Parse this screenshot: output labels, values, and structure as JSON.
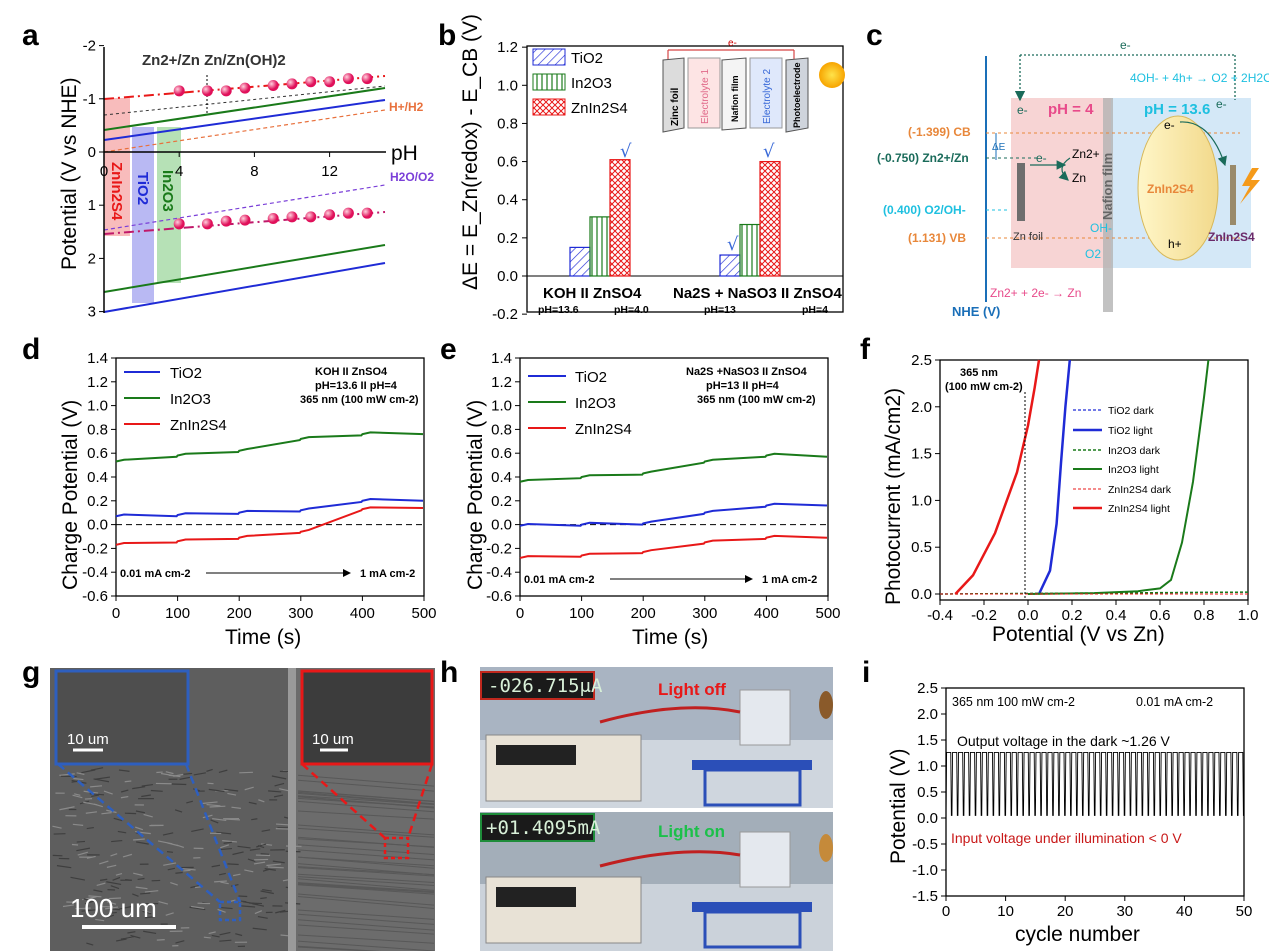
{
  "panels": {
    "a": "a",
    "b": "b",
    "c": "c",
    "d": "d",
    "e": "e",
    "f": "f",
    "g": "g",
    "h": "h",
    "i": "i"
  },
  "colors": {
    "tio2": "#1f2bd6",
    "in2o3": "#1a7a1a",
    "znin2s4": "#e81818",
    "red_band": "#f6a5a5",
    "blue_band": "#a8a8f0",
    "green_band": "#a4d9a4",
    "h2o_o2": "#7a3fd8",
    "h2": "#e8713d",
    "pink": "#e91e63"
  },
  "panel_a": {
    "ylabel": "Potential (V vs NHE)",
    "xlabel": "pH",
    "yticks": [
      "-2",
      "-1",
      "0",
      "1",
      "2",
      "3"
    ],
    "xticks": [
      "0",
      "4",
      "8",
      "12"
    ],
    "title": "Zn2+/Zn  Zn/Zn(OH)2",
    "label_h2": "H+/H2",
    "label_o2": "H2O/O2",
    "band_labels": [
      "ZnIn2S4",
      "TiO2",
      "In2O3"
    ],
    "upper_points": [
      [
        4,
        -1.15
      ],
      [
        5.5,
        -1.15
      ],
      [
        6.5,
        -1.15
      ],
      [
        7.5,
        -1.2
      ],
      [
        9,
        -1.25
      ],
      [
        10,
        -1.28
      ],
      [
        11,
        -1.32
      ],
      [
        12,
        -1.32
      ],
      [
        13,
        -1.38
      ],
      [
        14,
        -1.38
      ]
    ],
    "lower_points": [
      [
        4,
        1.35
      ],
      [
        5.5,
        1.35
      ],
      [
        6.5,
        1.3
      ],
      [
        7.5,
        1.28
      ],
      [
        9,
        1.25
      ],
      [
        10,
        1.22
      ],
      [
        11,
        1.22
      ],
      [
        12,
        1.18
      ],
      [
        13,
        1.15
      ],
      [
        14,
        1.15
      ]
    ]
  },
  "panel_b": {
    "ylabel": "ΔE = E_Zn(redox) - E_CB (V)",
    "yticks": [
      "-0.2",
      "0.0",
      "0.2",
      "0.4",
      "0.6",
      "0.8",
      "1.0",
      "1.2"
    ],
    "legend": [
      "TiO2",
      "In2O3",
      "ZnIn2S4"
    ],
    "cat1": {
      "top": "KOH    II    ZnSO4",
      "bottom_left": "pH=13.6",
      "bottom_right": "pH=4.0"
    },
    "cat2": {
      "top": "Na2S + NaSO3  II  ZnSO4",
      "bottom_left": "pH=13",
      "bottom_right": "pH=4"
    },
    "check": "√",
    "cell_labels": [
      "Zinc foil",
      "Electrolyte 1",
      "Nafion film",
      "Electrolyte 2",
      "Photoelectrode"
    ],
    "electron": "e-"
  },
  "panel_c": {
    "nhe": "NHE (V)",
    "de": "ΔE",
    "cb": "(-1.399) CB",
    "zn": "(-0.750) Zn2+/Zn",
    "o2": "(0.400) O2/OH-",
    "vb": "(1.131) VB",
    "ph4": "pH = 4",
    "ph136": "pH = 13.6",
    "zinc_foil": "Zn foil",
    "nafion": "Nafion film",
    "znin2s4": "ZnIn2S4",
    "reaction_top": "4OH- + 4h+ → O2 + 2H2O",
    "reaction_bottom": "Zn2+ + 2e- → Zn",
    "e": "e-",
    "h": "h+",
    "oh": "OH-",
    "o2s": "O2",
    "zn2": "Zn2+",
    "znm": "Zn"
  },
  "panel_d": {
    "ylabel": "Charge Potential (V)",
    "xlabel": "Time (s)",
    "yticks": [
      "-0.6",
      "-0.4",
      "-0.2",
      "0.0",
      "0.2",
      "0.4",
      "0.6",
      "0.8",
      "1.0",
      "1.2",
      "1.4"
    ],
    "xticks": [
      "0",
      "100",
      "200",
      "300",
      "400",
      "500"
    ],
    "legend": [
      "TiO2",
      "In2O3",
      "ZnIn2S4"
    ],
    "info1": "KOH     II     ZnSO4",
    "info2": "pH=13.6   II   pH=4",
    "info3": "365 nm (100 mW cm-2)",
    "arrow_left": "0.01 mA cm-2",
    "arrow_right": "1 mA cm-2"
  },
  "panel_e": {
    "ylabel": "Charge Potential (V)",
    "xlabel": "Time (s)",
    "yticks": [
      "-0.6",
      "-0.4",
      "-0.2",
      "0.0",
      "0.2",
      "0.4",
      "0.6",
      "0.8",
      "1.0",
      "1.2",
      "1.4"
    ],
    "xticks": [
      "0",
      "100",
      "200",
      "300",
      "400",
      "500"
    ],
    "legend": [
      "TiO2",
      "In2O3",
      "ZnIn2S4"
    ],
    "info1": "Na2S +NaSO3  II  ZnSO4",
    "info2": "pH=13       II   pH=4",
    "info3": "365 nm (100 mW cm-2)",
    "arrow_left": "0.01 mA cm-2",
    "arrow_right": "1 mA cm-2"
  },
  "panel_f": {
    "ylabel": "Photocurrent (mA/cm2)",
    "xlabel": "Potential (V vs Zn)",
    "yticks": [
      "0.0",
      "0.5",
      "1.0",
      "1.5",
      "2.0",
      "2.5"
    ],
    "xticks": [
      "-0.4",
      "-0.2",
      "0.0",
      "0.2",
      "0.4",
      "0.6",
      "0.8",
      "1.0"
    ],
    "legend": [
      "TiO2 dark",
      "TiO2 light",
      "In2O3 dark",
      "In2O3 light",
      "ZnIn2S4 dark",
      "ZnIn2S4 light"
    ],
    "note1": "365 nm",
    "note2": "(100 mW cm-2)"
  },
  "panel_g": {
    "scale_inset_left": "10 um",
    "scale_inset_right": "10 um",
    "scale_main": "100 um"
  },
  "panel_h": {
    "reading_off": "-026.715μA",
    "reading_on": "+01.4095mA",
    "label_off": "Light off",
    "label_on": "Light on"
  },
  "panel_i": {
    "ylabel": "Potential (V)",
    "xlabel": "cycle number",
    "yticks": [
      "-1.5",
      "-1.0",
      "-0.5",
      "0.0",
      "0.5",
      "1.0",
      "1.5",
      "2.0",
      "2.5"
    ],
    "xticks": [
      "0",
      "10",
      "20",
      "30",
      "40",
      "50"
    ],
    "info_left": "365 nm 100 mW cm-2",
    "info_right": "0.01 mA cm-2",
    "output": "Output voltage in the dark ~1.26 V",
    "input": "Input voltage under illumination < 0 V"
  },
  "chart_data": [
    {
      "type": "line",
      "title": "",
      "xlabel": "pH",
      "ylabel": "Potential (V vs NHE)",
      "xlim": [
        0,
        15
      ],
      "ylim": [
        -2,
        3
      ],
      "y_inverted": true,
      "series": [
        {
          "name": "TiO2",
          "x": [
            0,
            15
          ],
          "y": [
            -0.15,
            -1.0
          ]
        },
        {
          "name": "In2O3",
          "x": [
            0,
            15
          ],
          "y": [
            -0.3,
            -1.15
          ]
        },
        {
          "name": "H+/H2",
          "x": [
            0,
            15
          ],
          "y": [
            0,
            -0.89
          ]
        },
        {
          "name": "H2O/O2",
          "x": [
            0,
            15
          ],
          "y": [
            1.23,
            0.34
          ]
        },
        {
          "name": "TiO2",
          "x": [
            0,
            15
          ],
          "y": [
            2.95,
            2.05
          ]
        },
        {
          "name": "In2O3",
          "x": [
            0,
            15
          ],
          "y": [
            2.6,
            1.75
          ]
        }
      ]
    },
    {
      "type": "bar",
      "title": "",
      "ylabel": "ΔE = E_Zn(redox) - E_CB (V)",
      "ylim": [
        -0.2,
        1.2
      ],
      "categories": [
        "KOH II ZnSO4",
        "Na2S + NaSO3 II ZnSO4"
      ],
      "series": [
        {
          "name": "TiO2",
          "values": [
            0.15,
            0.11
          ]
        },
        {
          "name": "In2O3",
          "values": [
            0.31,
            0.27
          ]
        },
        {
          "name": "ZnIn2S4",
          "values": [
            0.61,
            0.6
          ]
        }
      ]
    },
    {
      "type": "line",
      "title": "",
      "xlabel": "Time (s)",
      "ylabel": "Charge Potential (V)",
      "xlim": [
        0,
        500
      ],
      "ylim": [
        -0.6,
        1.4
      ],
      "x": [
        0,
        100,
        200,
        300,
        400,
        500
      ],
      "series": [
        {
          "name": "TiO2",
          "values": [
            0.07,
            0.08,
            0.1,
            0.12,
            0.2,
            0.21
          ]
        },
        {
          "name": "In2O3",
          "values": [
            0.53,
            0.58,
            0.62,
            0.72,
            0.76,
            0.77
          ]
        },
        {
          "name": "ZnIn2S4",
          "values": [
            -0.17,
            -0.14,
            -0.11,
            -0.06,
            0.13,
            0.15
          ]
        }
      ]
    },
    {
      "type": "line",
      "title": "",
      "xlabel": "Time (s)",
      "ylabel": "Charge Potential (V)",
      "xlim": [
        0,
        500
      ],
      "ylim": [
        -0.6,
        1.4
      ],
      "x": [
        0,
        100,
        200,
        300,
        400,
        500
      ],
      "series": [
        {
          "name": "TiO2",
          "values": [
            -0.01,
            0.0,
            0.01,
            0.1,
            0.16,
            0.17
          ]
        },
        {
          "name": "In2O3",
          "values": [
            0.36,
            0.4,
            0.43,
            0.53,
            0.58,
            0.58
          ]
        },
        {
          "name": "ZnIn2S4",
          "values": [
            -0.28,
            -0.26,
            -0.23,
            -0.15,
            -0.11,
            -0.1
          ]
        }
      ]
    },
    {
      "type": "line",
      "title": "",
      "xlabel": "Potential (V vs Zn)",
      "ylabel": "Photocurrent (mA/cm2)",
      "xlim": [
        -0.4,
        1.0
      ],
      "ylim": [
        0,
        2.5
      ],
      "series": [
        {
          "name": "TiO2 dark",
          "x": [
            -0.4,
            1.0
          ],
          "y": [
            0.0,
            0.02
          ]
        },
        {
          "name": "TiO2 light",
          "x": [
            0.05,
            0.1,
            0.13,
            0.15,
            0.17,
            0.19
          ],
          "y": [
            0.0,
            0.25,
            0.75,
            1.4,
            2.0,
            2.5
          ]
        },
        {
          "name": "In2O3 dark",
          "x": [
            -0.4,
            1.0
          ],
          "y": [
            0.0,
            0.02
          ]
        },
        {
          "name": "In2O3 light",
          "x": [
            0.0,
            0.3,
            0.5,
            0.6,
            0.65,
            0.7,
            0.75,
            0.8,
            0.82
          ],
          "y": [
            0.0,
            0.01,
            0.03,
            0.06,
            0.15,
            0.55,
            1.2,
            2.1,
            2.5
          ]
        },
        {
          "name": "ZnIn2S4 dark",
          "x": [
            -0.4,
            1.0
          ],
          "y": [
            0.0,
            0.0
          ]
        },
        {
          "name": "ZnIn2S4 light",
          "x": [
            -0.33,
            -0.25,
            -0.15,
            -0.05,
            0.0,
            0.03,
            0.05
          ],
          "y": [
            0.0,
            0.2,
            0.65,
            1.3,
            1.8,
            2.2,
            2.5
          ]
        }
      ]
    },
    {
      "type": "line",
      "title": "",
      "xlabel": "cycle number",
      "ylabel": "Potential (V)",
      "xlim": [
        0,
        50
      ],
      "ylim": [
        -1.5,
        2.5
      ],
      "series": [
        {
          "name": "",
          "cycles": 50,
          "high": 1.26,
          "low": 0.05
        }
      ]
    }
  ]
}
